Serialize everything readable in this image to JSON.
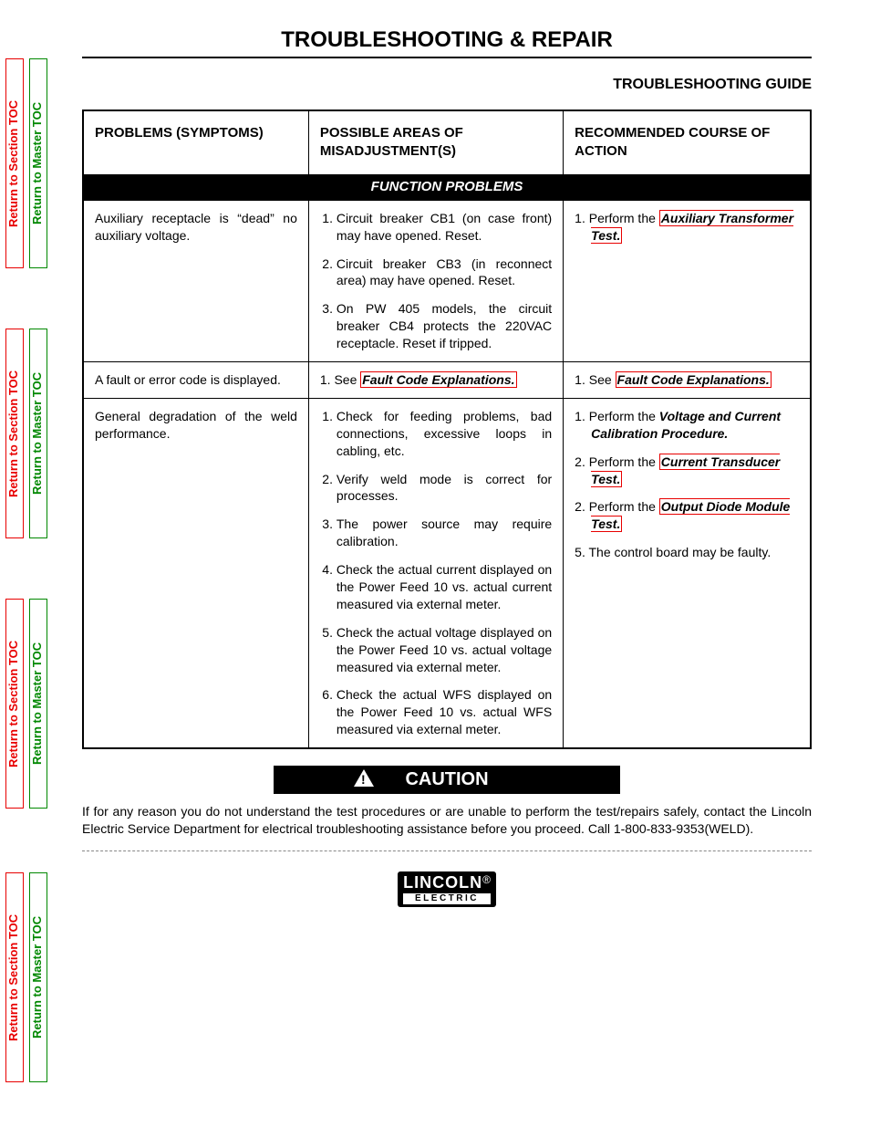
{
  "side_tabs": {
    "red_label": "Return to Section TOC",
    "green_label": "Return to Master TOC",
    "positions": [
      64,
      360,
      656,
      956
    ],
    "tab_height": 230,
    "red_color": "#e80000",
    "green_color": "#008800"
  },
  "title": "TROUBLESHOOTING & REPAIR",
  "subtitle": "TROUBLESHOOTING GUIDE",
  "table": {
    "headers": [
      "PROBLEMS (SYMPTOMS)",
      "POSSIBLE AREAS OF MISADJUSTMENT(S)",
      "RECOMMENDED COURSE OF ACTION"
    ],
    "section_label": "FUNCTION PROBLEMS",
    "rows": [
      {
        "problem": "Auxiliary receptacle is “dead” no auxiliary voltage.",
        "areas": [
          "Circuit breaker CB1 (on case front) may have opened.  Reset.",
          "Circuit breaker CB3 (in reconnect area) may have opened. Reset.",
          "On PW 405 models, the circuit breaker CB4 protects the 220VAC receptacle.  Reset if tripped."
        ],
        "actions": [
          {
            "pre": "Perform the ",
            "link": "Auxiliary Transformer Test."
          }
        ]
      },
      {
        "problem": "A fault or error code is displayed.",
        "areas_single": {
          "pre": "1. See ",
          "link": "Fault Code Explanations."
        },
        "actions_single": {
          "pre": "1. See ",
          "link": "Fault Code Explanations."
        }
      },
      {
        "problem": "General degradation of the weld performance.",
        "areas": [
          "Check for feeding problems, bad connections, excessive loops in cabling, etc.",
          "Verify weld mode is correct for processes.",
          "The power source may require calibration.",
          "Check the actual current displayed on the Power Feed 10 vs. actual current measured via external meter.",
          "Check the actual voltage displayed on the Power Feed 10 vs. actual voltage measured via external meter.",
          "Check the actual WFS displayed on the Power Feed 10 vs. actual WFS measured via external meter."
        ],
        "actions": [
          {
            "num": "1.",
            "pre": "Perform the ",
            "bold": "Voltage and Current Calibration Procedure."
          },
          {
            "num": "2.",
            "pre": "Perform the ",
            "link": "Current Transducer Test."
          },
          {
            "num": "2.",
            "pre": "Perform the ",
            "link": "Output Diode Module Test."
          },
          {
            "num": "5.",
            "plain": "The control board may be faulty."
          }
        ]
      }
    ]
  },
  "caution": {
    "label": "CAUTION",
    "text": "If for any reason you do not understand the test procedures or are unable to perform the test/repairs safely, contact the Lincoln Electric Service Department for electrical troubleshooting assistance before you proceed. Call  1-800-833-9353(WELD)."
  },
  "logo": {
    "top": "LINCOLN",
    "bottom": "ELECTRIC"
  }
}
